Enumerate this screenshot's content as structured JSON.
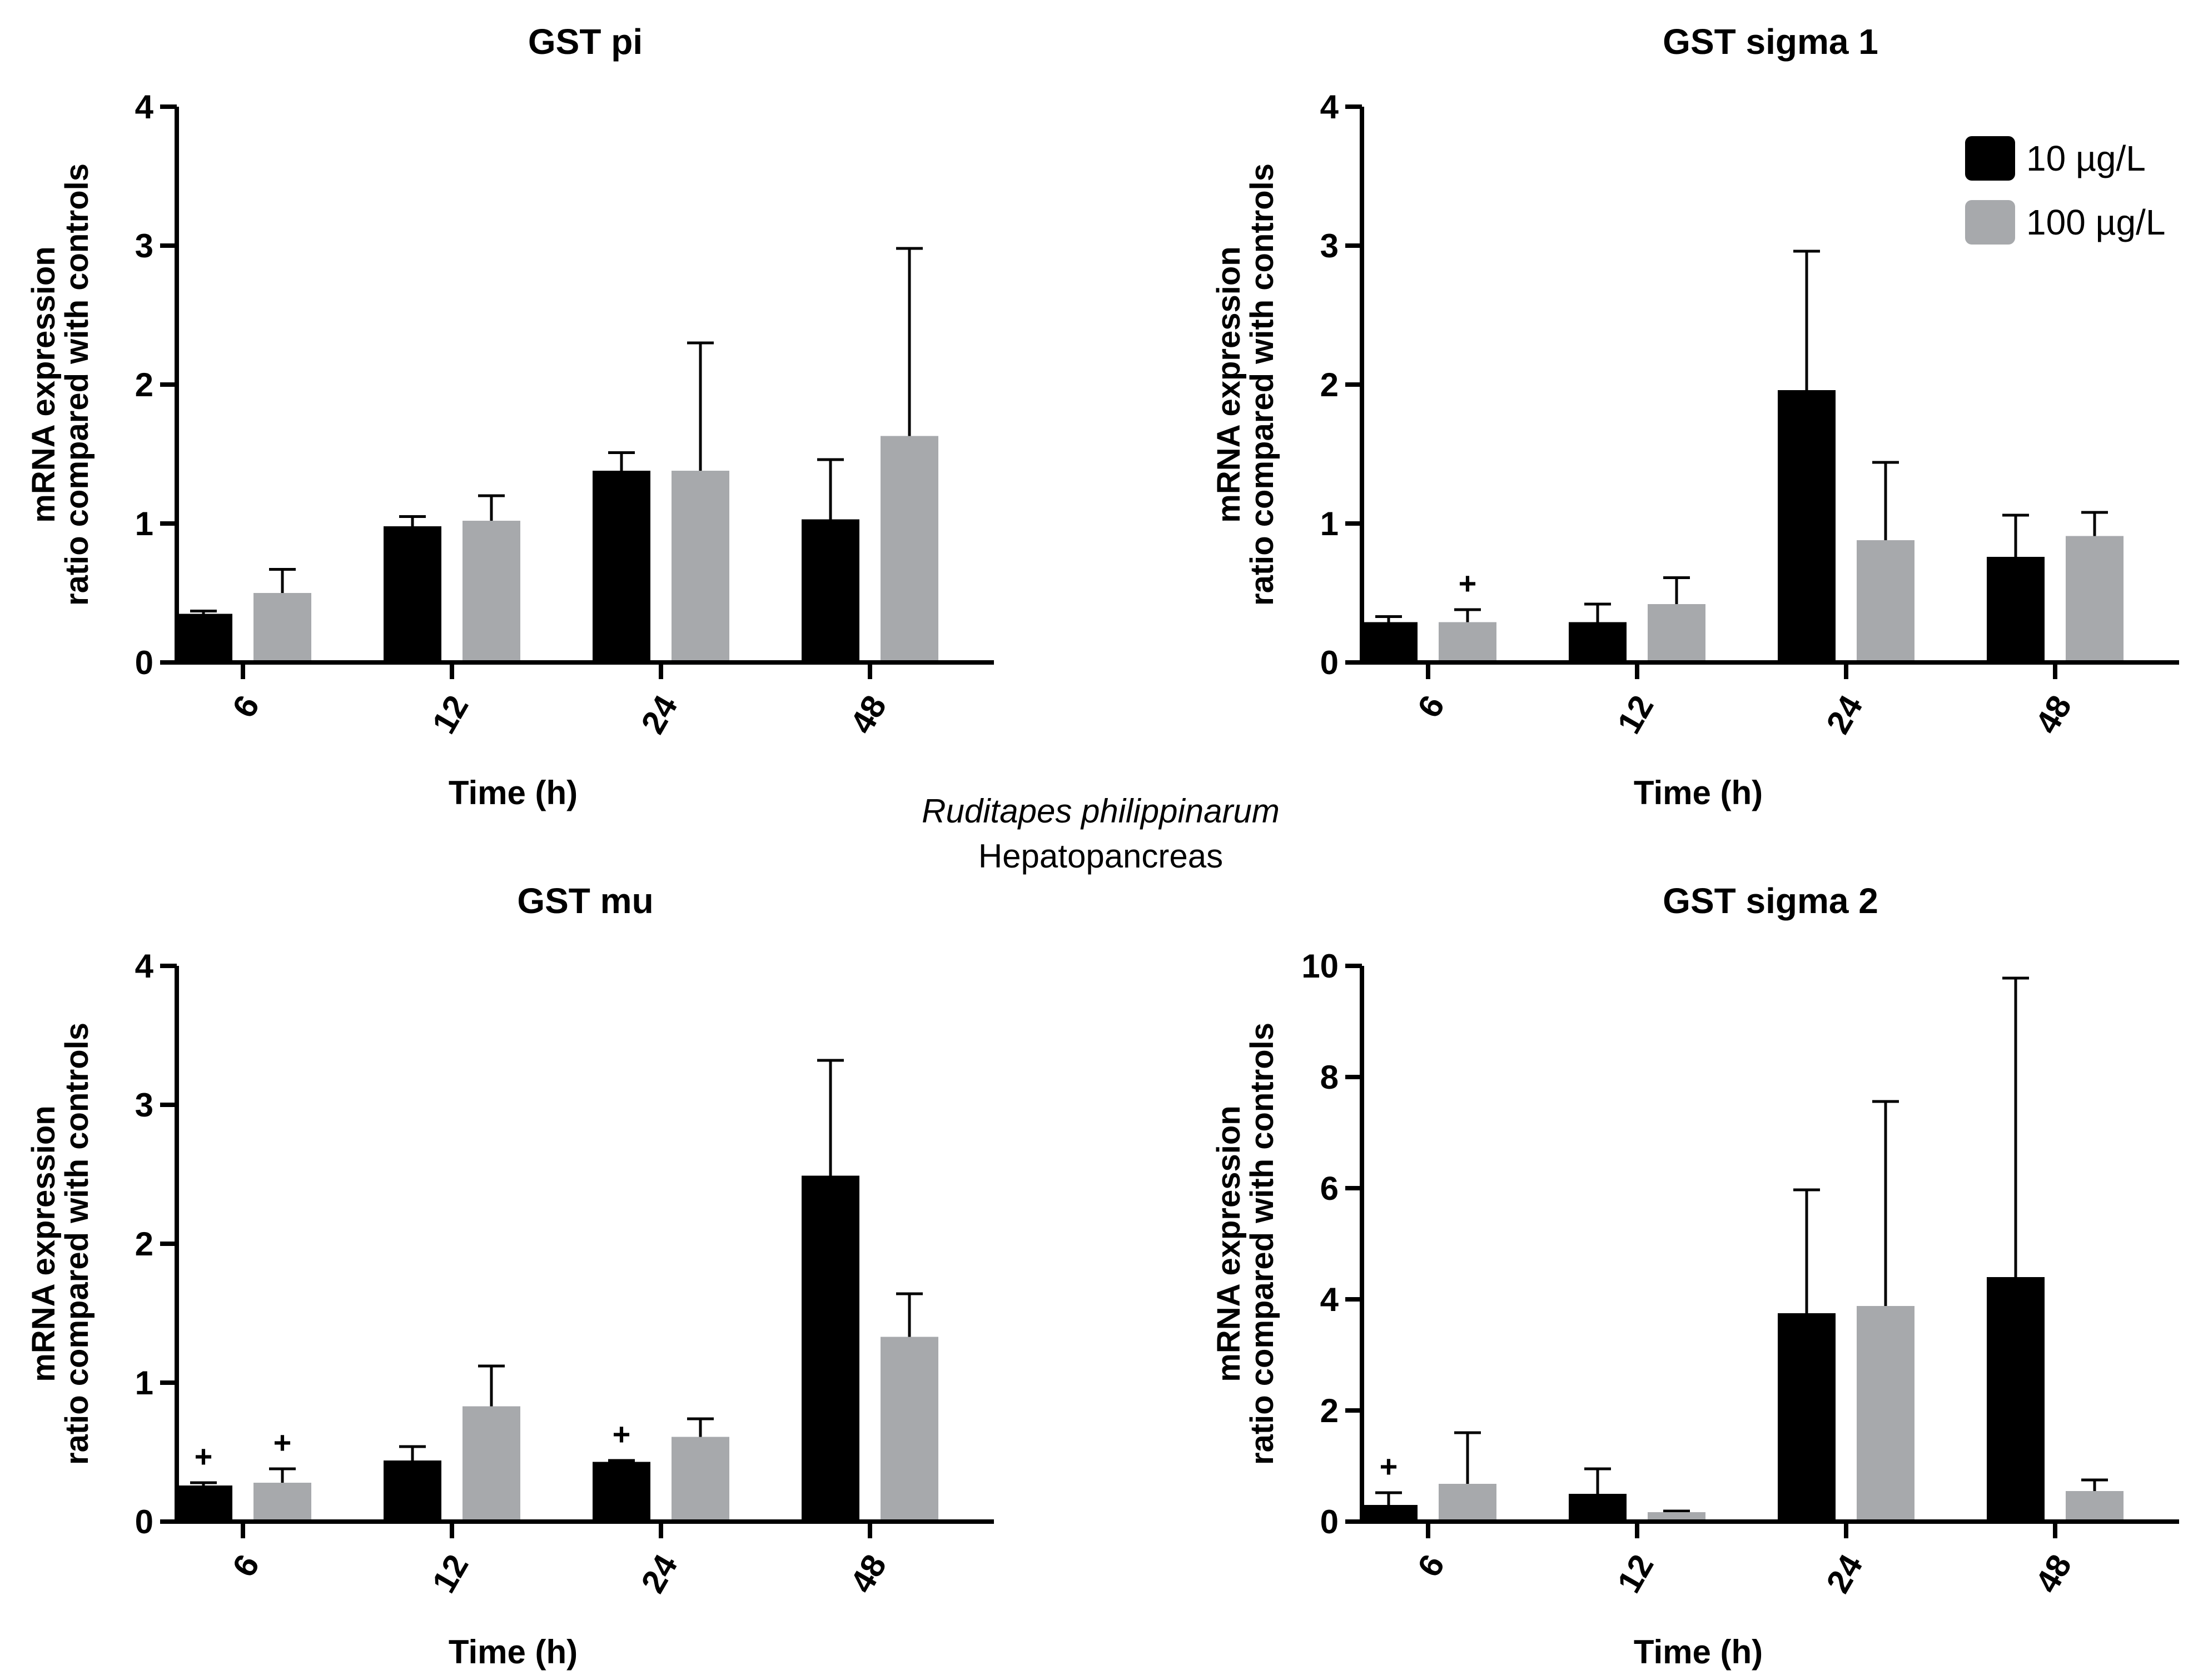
{
  "figure": {
    "species": "Ruditapes philippinarum",
    "tissue": "Hepatopancreas"
  },
  "legend": {
    "items": [
      {
        "label": "10 µg/L",
        "color": "#000000"
      },
      {
        "label": "100 µg/L",
        "color": "#a7a9ac"
      }
    ],
    "position": "top-right of GST sigma 1 panel"
  },
  "chart_data": [
    {
      "type": "bar",
      "title": "GST pi",
      "xlabel": "Time (h)",
      "ylabel": [
        "mRNA expression",
        "ratio compared with controls"
      ],
      "categories": [
        "6",
        "12",
        "24",
        "48"
      ],
      "ylim": [
        0,
        4
      ],
      "yticks": [
        "0",
        "1",
        "2",
        "3",
        "4"
      ],
      "grid": false,
      "series": [
        {
          "name": "10 µg/L",
          "values": [
            0.35,
            0.98,
            1.38,
            1.03
          ],
          "errors": [
            0.02,
            0.07,
            0.13,
            0.43
          ]
        },
        {
          "name": "100 µg/L",
          "values": [
            0.5,
            1.02,
            1.38,
            1.63
          ],
          "errors": [
            0.17,
            0.18,
            0.92,
            1.35
          ]
        }
      ],
      "annotations": []
    },
    {
      "type": "bar",
      "title": "GST sigma 1",
      "xlabel": "Time (h)",
      "ylabel": [
        "mRNA expression",
        "ratio compared with controls"
      ],
      "categories": [
        "6",
        "12",
        "24",
        "48"
      ],
      "ylim": [
        0,
        4
      ],
      "yticks": [
        "0",
        "1",
        "2",
        "3",
        "4"
      ],
      "grid": false,
      "series": [
        {
          "name": "10 µg/L",
          "values": [
            0.29,
            0.29,
            1.96,
            0.76
          ],
          "errors": [
            0.04,
            0.13,
            1.0,
            0.3
          ]
        },
        {
          "name": "100 µg/L",
          "values": [
            0.29,
            0.42,
            0.88,
            0.91
          ],
          "errors": [
            0.09,
            0.19,
            0.56,
            0.17
          ]
        }
      ],
      "annotations": [
        {
          "category": "6",
          "series": "100 µg/L",
          "text": "+"
        }
      ]
    },
    {
      "type": "bar",
      "title": "GST mu",
      "xlabel": "Time (h)",
      "ylabel": [
        "mRNA expression",
        "ratio compared with controls"
      ],
      "categories": [
        "6",
        "12",
        "24",
        "48"
      ],
      "ylim": [
        0,
        4
      ],
      "yticks": [
        "0",
        "1",
        "2",
        "3",
        "4"
      ],
      "grid": false,
      "series": [
        {
          "name": "10 µg/L",
          "values": [
            0.26,
            0.44,
            0.43,
            2.49
          ],
          "errors": [
            0.02,
            0.1,
            0.01,
            0.83
          ]
        },
        {
          "name": "100 µg/L",
          "values": [
            0.28,
            0.83,
            0.61,
            1.33
          ],
          "errors": [
            0.1,
            0.29,
            0.13,
            0.31
          ]
        }
      ],
      "annotations": [
        {
          "category": "6",
          "series": "10 µg/L",
          "text": "+"
        },
        {
          "category": "6",
          "series": "100 µg/L",
          "text": "+"
        },
        {
          "category": "24",
          "series": "10 µg/L",
          "text": "+"
        }
      ]
    },
    {
      "type": "bar",
      "title": "GST sigma 2",
      "xlabel": "Time (h)",
      "ylabel": [
        "mRNA expression",
        "ratio compared with controls"
      ],
      "categories": [
        "6",
        "12",
        "24",
        "48"
      ],
      "ylim": [
        0,
        10
      ],
      "yticks": [
        "0",
        "2",
        "4",
        "6",
        "8",
        "10"
      ],
      "grid": false,
      "series": [
        {
          "name": "10 µg/L",
          "values": [
            0.3,
            0.5,
            3.75,
            4.4
          ],
          "errors": [
            0.22,
            0.45,
            2.22,
            5.38
          ]
        },
        {
          "name": "100 µg/L",
          "values": [
            0.68,
            0.17,
            3.88,
            0.55
          ],
          "errors": [
            0.92,
            0.02,
            3.68,
            0.2
          ]
        }
      ],
      "annotations": [
        {
          "category": "6",
          "series": "10 µg/L",
          "text": "+"
        }
      ]
    }
  ]
}
